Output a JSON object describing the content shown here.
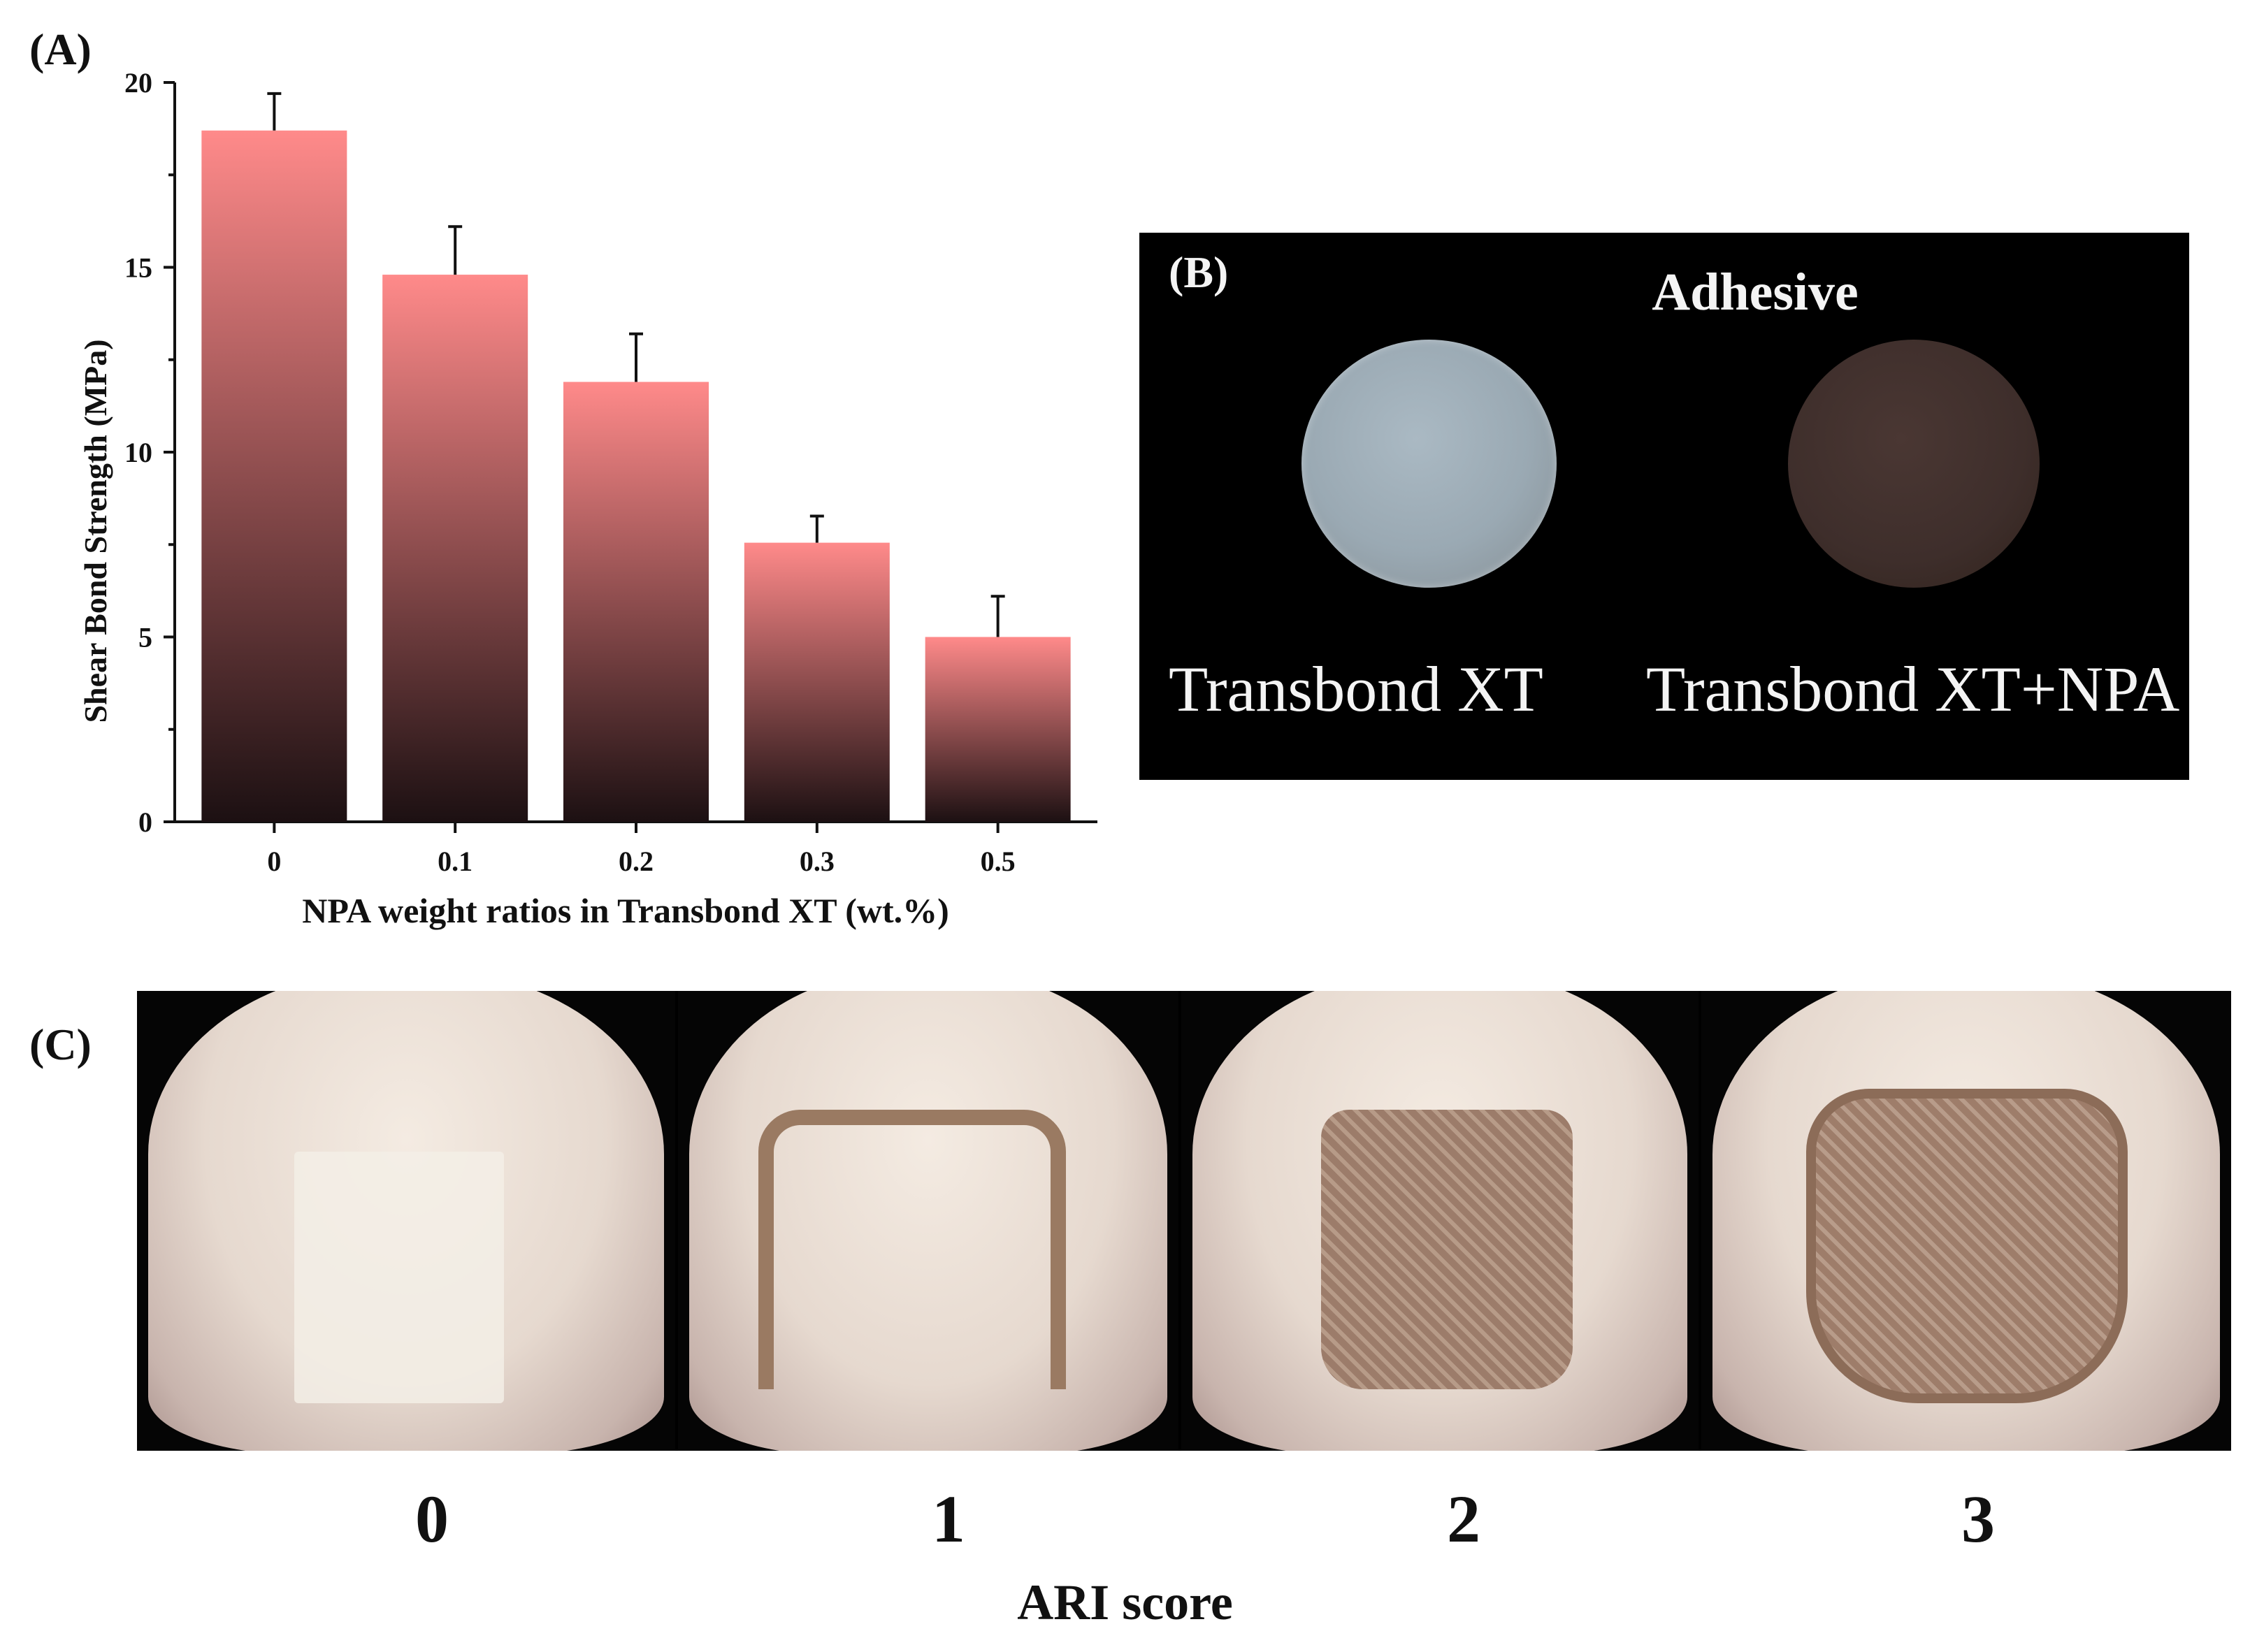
{
  "panels": {
    "a": "(A)",
    "b": "(B)",
    "c": "(C)"
  },
  "chart_data": {
    "type": "bar",
    "categories": [
      "0",
      "0.1",
      "0.2",
      "0.3",
      "0.5"
    ],
    "values": [
      18.7,
      14.8,
      11.9,
      7.55,
      5.0
    ],
    "errors": [
      1.0,
      1.3,
      1.3,
      0.72,
      1.1
    ],
    "xlabel": "NPA weight ratios in Transbond XT (wt.%)",
    "ylabel": "Shear Bond Strength (MPa)",
    "ylim": [
      0,
      20
    ],
    "yticks": [
      0,
      5,
      10,
      15,
      20
    ],
    "bar_color_top": "#ff8a8a",
    "bar_color_bottom": "#1c1012"
  },
  "panel_b": {
    "title": "Adhesive",
    "left_label": "Transbond XT",
    "right_label": "Transbond XT+NPA"
  },
  "panel_c": {
    "scores": [
      "0",
      "1",
      "2",
      "3"
    ],
    "xlabel": "ARI score"
  }
}
